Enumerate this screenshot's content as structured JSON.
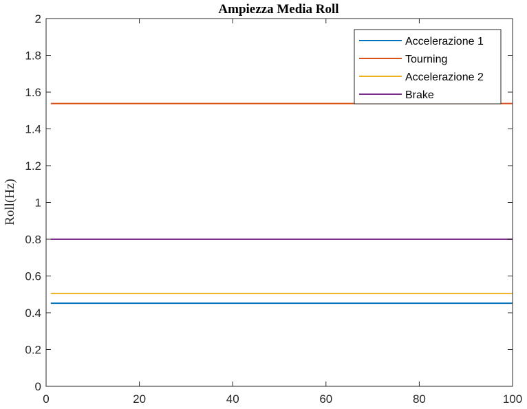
{
  "chart_data": {
    "type": "line",
    "title": "Ampiezza Media Roll",
    "xlabel": "",
    "ylabel": "Roll(Hz)",
    "xlim": [
      0,
      100
    ],
    "ylim": [
      0,
      2
    ],
    "xticks": [
      0,
      20,
      40,
      60,
      80,
      100
    ],
    "yticks": [
      0,
      0.2,
      0.4,
      0.6,
      0.8,
      1,
      1.2,
      1.4,
      1.6,
      1.8,
      2
    ],
    "xtick_labels": [
      "0",
      "20",
      "40",
      "60",
      "80",
      "100"
    ],
    "ytick_labels": [
      "0",
      "0.2",
      "0.4",
      "0.6",
      "0.8",
      "1",
      "1.2",
      "1.4",
      "1.6",
      "1.8",
      "2"
    ],
    "grid": false,
    "legend_position": "top-right",
    "series": [
      {
        "name": "Accelerazione 1",
        "color": "#0072BD",
        "x": [
          1,
          100
        ],
        "y": [
          0.452,
          0.452
        ]
      },
      {
        "name": "Tourning",
        "color": "#D95319",
        "x": [
          1,
          100
        ],
        "y": [
          1.538,
          1.538
        ]
      },
      {
        "name": "Accelerazione 2",
        "color": "#EDB120",
        "x": [
          1,
          100
        ],
        "y": [
          0.505,
          0.505
        ]
      },
      {
        "name": "Brake",
        "color": "#7E2F8E",
        "x": [
          1,
          100
        ],
        "y": [
          0.8,
          0.8
        ]
      }
    ]
  }
}
